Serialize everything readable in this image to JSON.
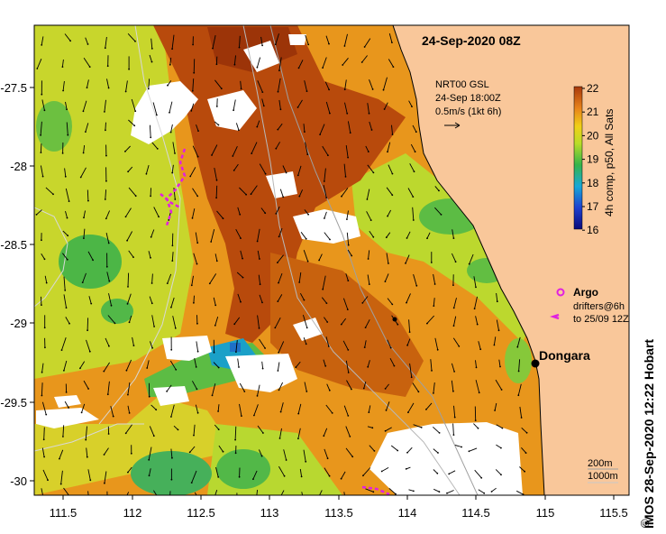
{
  "title": "24-Sep-2020 08Z",
  "current_info": {
    "line1": "NRT00 GSL",
    "line2": "24-Sep 18:00Z",
    "line3": "0.5m/s (1kt 6h)"
  },
  "colorbar": {
    "label": "4h comp, p50, All Sats",
    "ticks": [
      "22",
      "21",
      "20",
      "19",
      "18",
      "17",
      "16"
    ]
  },
  "legend": {
    "argo": "Argo",
    "drifters_line1": "drifters@6h",
    "drifters_line2": "to 25/09 12Z"
  },
  "place": {
    "name": "Dongara"
  },
  "depth_legend": {
    "contour1": "200m",
    "contour2": "1000m"
  },
  "credit": "IMOS 28-Sep-2020 12:22 Hobart",
  "copyright": "©",
  "axes": {
    "x_ticks": [
      "111.5",
      "112",
      "112.5",
      "113",
      "113.5",
      "114",
      "114.5",
      "115",
      "115.5"
    ],
    "y_ticks": [
      "-27.5",
      "-28",
      "-28.5",
      "-29",
      "-29.5",
      "-30"
    ]
  },
  "colors": {
    "land": "#f9c79a",
    "warm": "#b84a0c",
    "mid": "#e58a14",
    "cool": "#c9dc2c",
    "green": "#4cb646",
    "cyan": "#1aa0c8",
    "cloud": "#ffffff"
  }
}
